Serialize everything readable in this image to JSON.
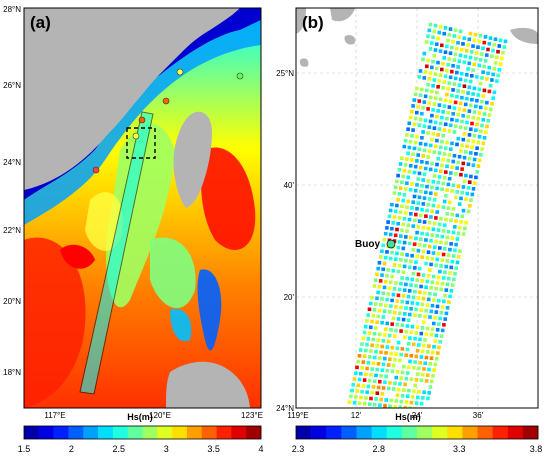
{
  "panel_a": {
    "label": "(a)",
    "lat_labels": [
      "28°N",
      "26°N",
      "24°N",
      "22°N",
      "20°N",
      "18°N"
    ],
    "lon_labels": [
      "117°E",
      "120°E",
      "123°E"
    ],
    "colorbar": {
      "title": "Hs(m)",
      "ticks": [
        "1.5",
        "2",
        "2.5",
        "3",
        "3.5",
        "4"
      ],
      "min": 1.5,
      "max": 4
    }
  },
  "panel_b": {
    "label": "(b)",
    "lat_labels": [
      "25°N",
      "40'",
      "20'",
      "24°N"
    ],
    "lon_labels": [
      "119°E",
      "12'",
      "24'",
      "36'"
    ],
    "buoy_label": "Buoy",
    "colorbar": {
      "title": "Hs(m)",
      "ticks": [
        "2.3",
        "2.8",
        "3.3",
        "3.8"
      ],
      "min": 2.3,
      "max": 3.8
    }
  },
  "colors": {
    "land": "#b4b4b4",
    "jet": [
      "#00008f",
      "#0000ff",
      "#0080ff",
      "#00ffff",
      "#80ff80",
      "#ffff00",
      "#ff8000",
      "#ff0000",
      "#800000"
    ]
  }
}
